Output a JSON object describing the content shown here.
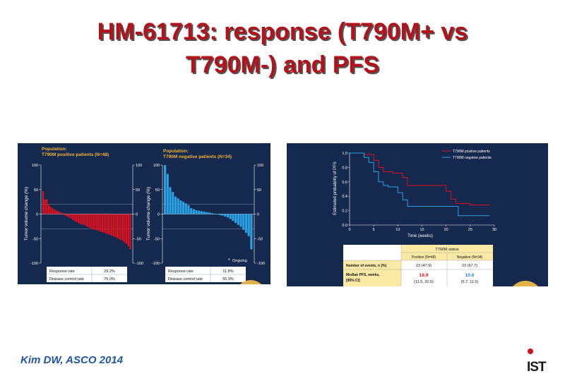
{
  "title": {
    "line1": "HM-61713: response (T790M+ vs",
    "line2": "T790M-) and PFS"
  },
  "left_panel": {
    "positive": {
      "pop_line1": "Population:",
      "pop_line2": "T790M positive patients (N=48)",
      "ylabel": "Tumor volume change (%)",
      "table": [
        [
          "Response rate",
          "29.2%"
        ],
        [
          "Disease control rate",
          "75.0%"
        ]
      ]
    },
    "negative": {
      "pop_line1": "Population:",
      "pop_line2": "T790M negative patients (N=34)",
      "ylabel": "Tumor volume change (%)",
      "table": [
        [
          "Response rate",
          "11.8%"
        ],
        [
          "Disease control rate",
          "55.9%"
        ]
      ],
      "legend": "Ongoing"
    }
  },
  "right_panel": {
    "legend": [
      "T790M positive patients",
      "T790M negative patients"
    ],
    "table": {
      "group_header": "T790M status",
      "col_headers": [
        "Positive (N=48)",
        "Negative (N=34)"
      ],
      "rows": [
        {
          "label": "Number of events, n (%)",
          "pos": "23 (47.9)",
          "neg": "23 (67.7)"
        },
        {
          "label1": "Median PFS, weeks,",
          "label2": "[95% CI]",
          "pos_main": "18.9",
          "pos_ci": "(11.5, 20.5)",
          "neg_main": "10.0",
          "neg_ci": "(5.7, 11.5)"
        }
      ]
    }
  },
  "citation": "Kim DW, ASCO 2014",
  "logo": {
    "text": "IST"
  },
  "colors": {
    "title": "#b3121b",
    "panel_bg": "#14294d",
    "positive": "#e0101f",
    "negative": "#2aa0e0",
    "citation": "#1f56a6"
  },
  "chart_data": [
    {
      "type": "bar",
      "title": "T790M positive patients (N=48)",
      "ylabel": "Tumor volume change (%)",
      "ylim": [
        -100,
        100
      ],
      "yticks": [
        100,
        50,
        0,
        -50,
        -100
      ],
      "reference_lines": [
        20,
        -30
      ],
      "values": [
        47,
        30,
        30,
        20,
        15,
        12,
        10,
        8,
        6,
        4,
        3,
        2,
        -3,
        -5,
        -7,
        -9,
        -12,
        -14,
        -16,
        -18,
        -20,
        -21,
        -22,
        -24,
        -26,
        -28,
        -30,
        -31,
        -32,
        -33,
        -34,
        -36,
        -37,
        -38,
        -40,
        -41,
        -42,
        -44,
        -45,
        -47,
        -49,
        -51,
        -53,
        -55,
        -58,
        -61,
        -66,
        -72
      ]
    },
    {
      "type": "bar",
      "title": "T790M negative patients (N=34)",
      "ylabel": "Tumor volume change (%)",
      "ylim": [
        -100,
        100
      ],
      "yticks": [
        100,
        50,
        0,
        -50,
        -100
      ],
      "reference_lines": [
        20,
        -30
      ],
      "values": [
        100,
        82,
        55,
        45,
        36,
        32,
        28,
        25,
        22,
        18,
        12,
        10,
        8,
        7,
        6,
        5,
        4,
        3,
        2,
        1,
        0,
        -2,
        -3,
        -5,
        -7,
        -10,
        -14,
        -18,
        -22,
        -26,
        -32,
        -38,
        -45,
        -72
      ]
    },
    {
      "type": "line",
      "xlabel": "Time (weeks)",
      "ylabel": "Estimated probability of PFS",
      "xlim": [
        0,
        30
      ],
      "ylim": [
        0,
        1.0
      ],
      "xticks": [
        0,
        5,
        10,
        15,
        20,
        25,
        30
      ],
      "yticks": [
        0.0,
        0.2,
        0.4,
        0.6,
        0.8,
        1.0
      ],
      "series": [
        {
          "name": "T790M positive patients",
          "color": "#e0101f",
          "points": [
            [
              0,
              1
            ],
            [
              2,
              1
            ],
            [
              3,
              0.98
            ],
            [
              5,
              0.9
            ],
            [
              6,
              0.8
            ],
            [
              7,
              0.74
            ],
            [
              8,
              0.74
            ],
            [
              9,
              0.72
            ],
            [
              10,
              0.72
            ],
            [
              11,
              0.66
            ],
            [
              12,
              0.55
            ],
            [
              19,
              0.55
            ],
            [
              20,
              0.47
            ],
            [
              21,
              0.36
            ],
            [
              22,
              0.3
            ],
            [
              25,
              0.28
            ],
            [
              29,
              0.28
            ]
          ]
        },
        {
          "name": "T790M negative patients",
          "color": "#2aa0e0",
          "points": [
            [
              0,
              1
            ],
            [
              2,
              1
            ],
            [
              3,
              0.94
            ],
            [
              4,
              0.87
            ],
            [
              5,
              0.74
            ],
            [
              6,
              0.6
            ],
            [
              7,
              0.55
            ],
            [
              8,
              0.53
            ],
            [
              10,
              0.45
            ],
            [
              11,
              0.35
            ],
            [
              12,
              0.26
            ],
            [
              22,
              0.26
            ],
            [
              22.5,
              0.13
            ],
            [
              29,
              0.13
            ]
          ]
        }
      ]
    }
  ]
}
